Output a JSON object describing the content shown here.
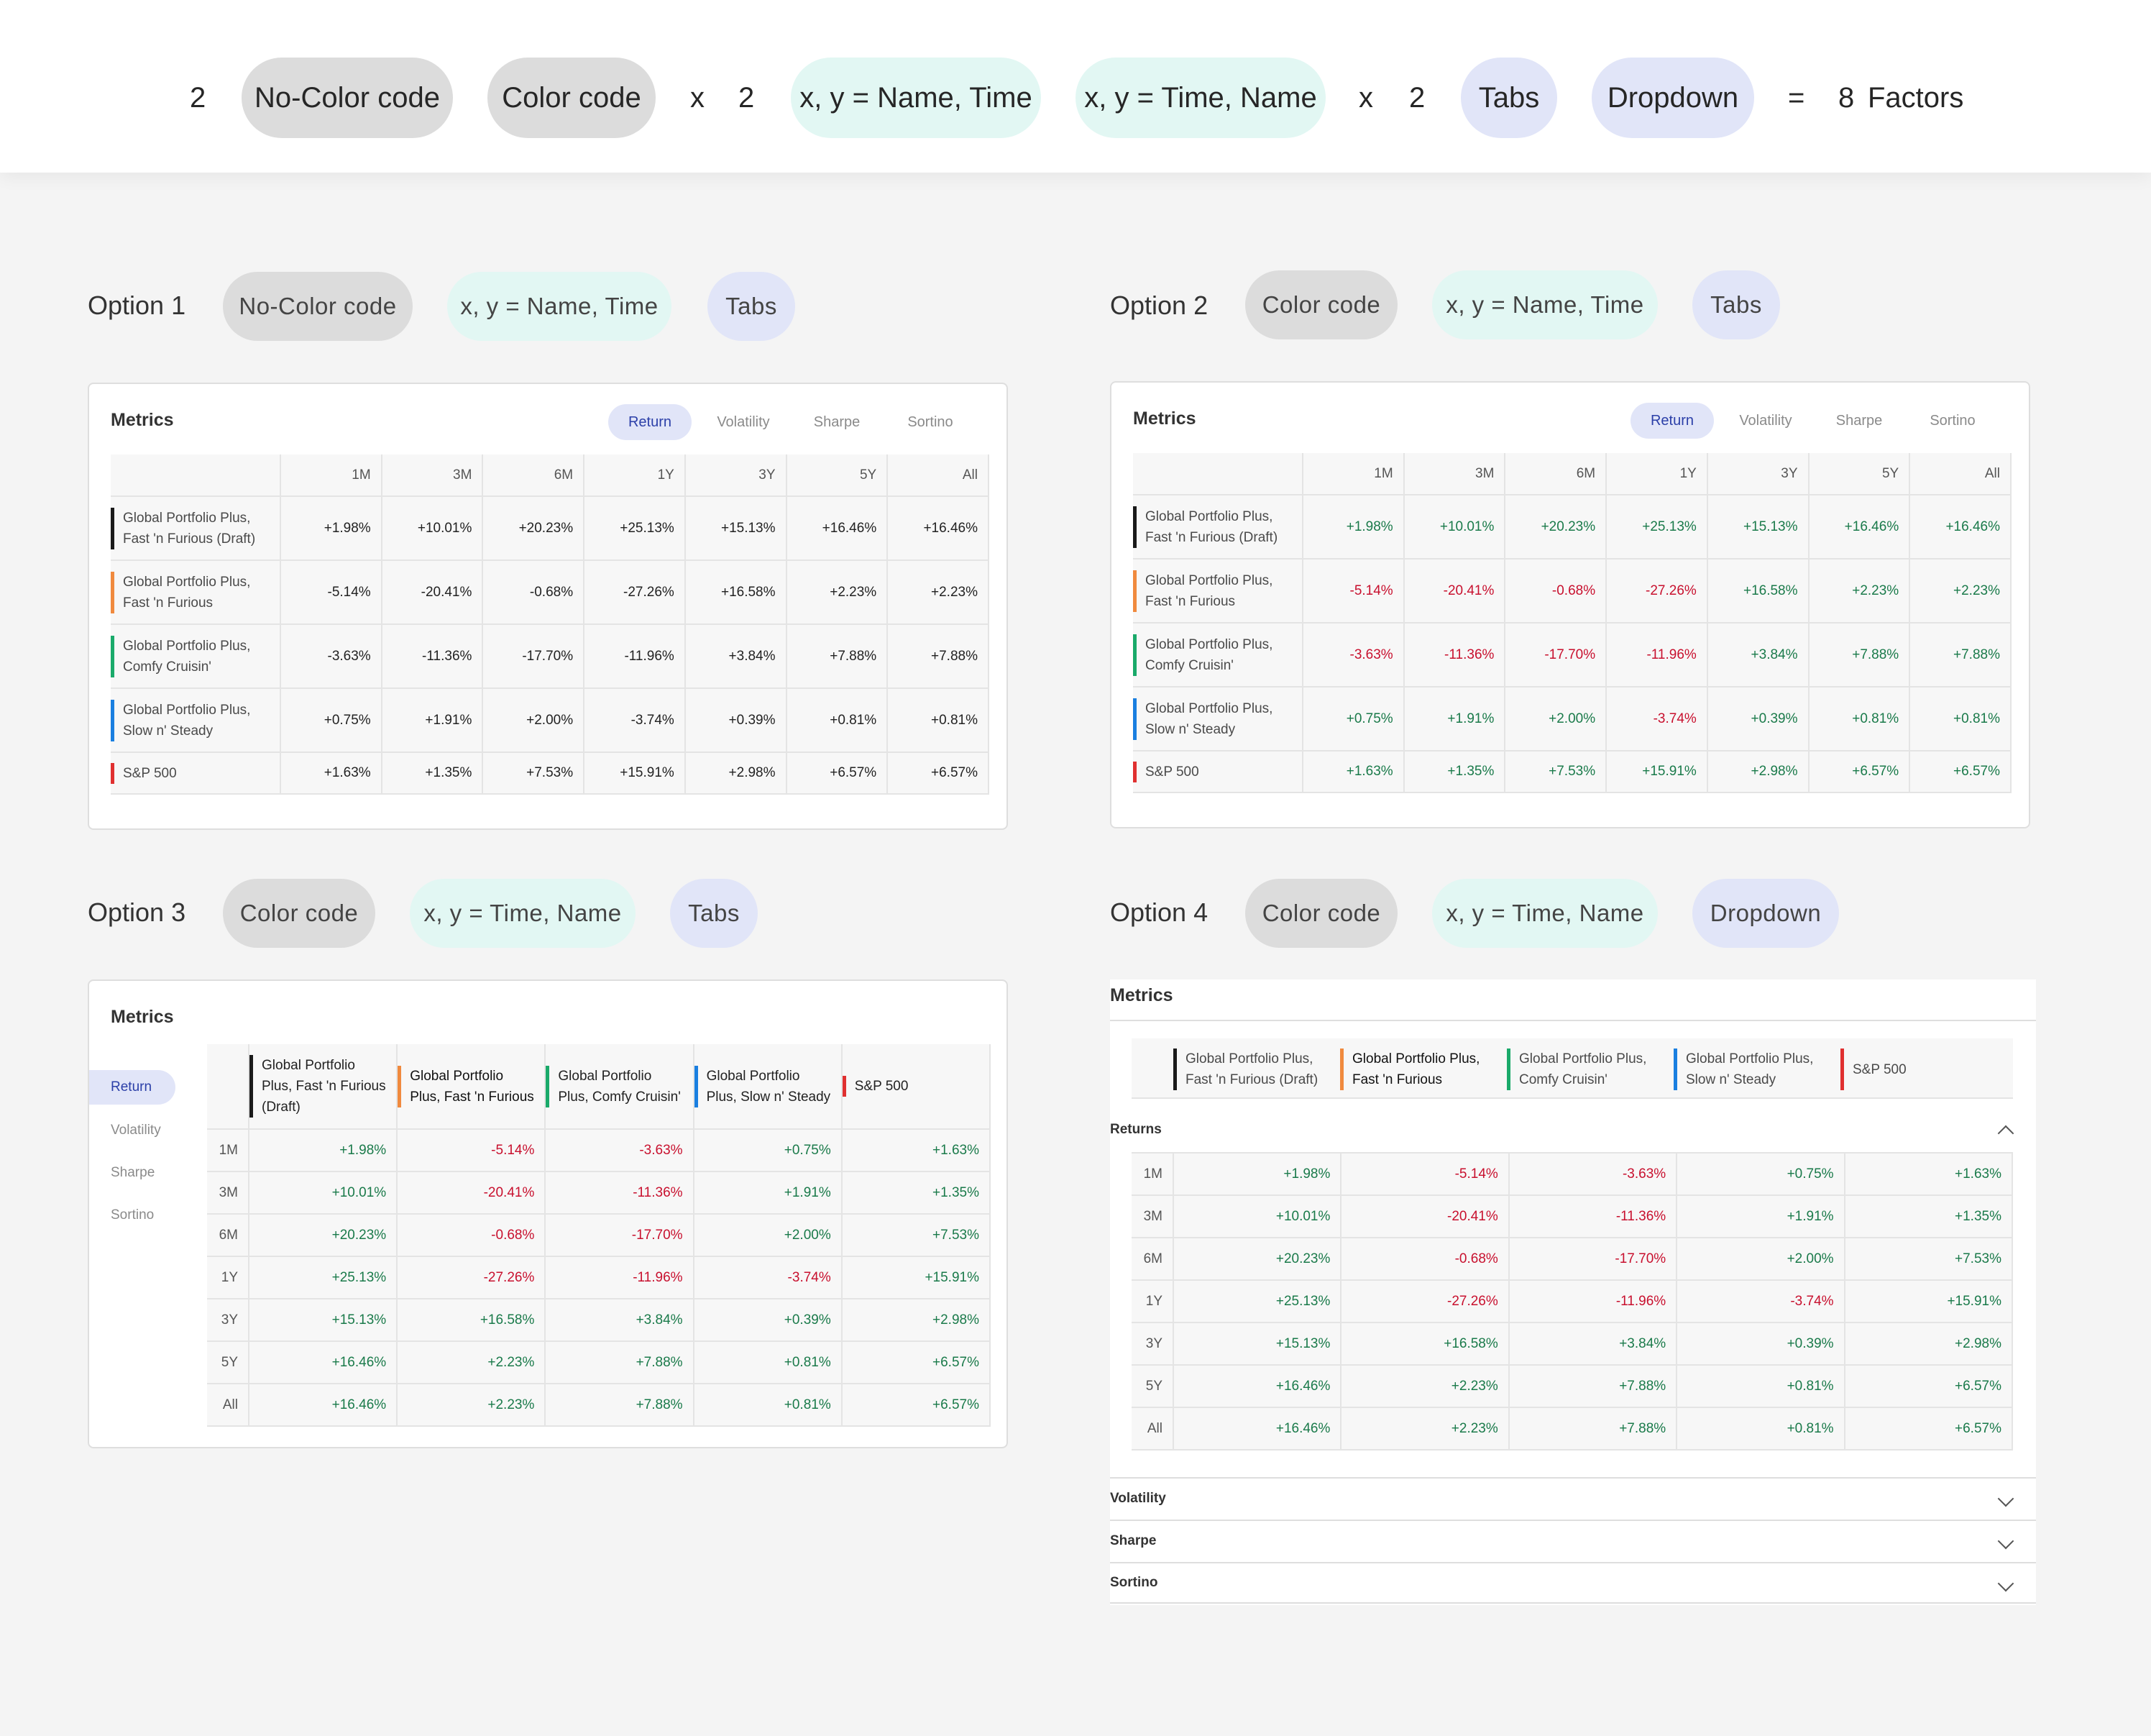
{
  "top": {
    "n1": "2",
    "p1": "No-Color code",
    "p2": "Color code",
    "x1": "x",
    "n2": "2",
    "p3": "x, y = Name, Time",
    "p4": "x, y = Time, Name",
    "x2": "x",
    "n3": "2",
    "p5": "Tabs",
    "p6": "Dropdown",
    "eq": "=",
    "n4": "8",
    "factors": "Factors"
  },
  "options": [
    {
      "title": "Option 1",
      "pills": [
        "No-Color code",
        "x, y = Name, Time",
        "Tabs"
      ]
    },
    {
      "title": "Option 2",
      "pills": [
        "Color code",
        "x, y = Name, Time",
        "Tabs"
      ]
    },
    {
      "title": "Option 3",
      "pills": [
        "Color code",
        "x, y = Time, Name",
        "Tabs"
      ]
    },
    {
      "title": "Option 4",
      "pills": [
        "Color code",
        "x, y = Time, Name",
        "Dropdown"
      ]
    }
  ],
  "card": {
    "title": "Metrics",
    "tabs": [
      "Return",
      "Volatility",
      "Sharpe",
      "Sortino"
    ]
  },
  "periods": [
    "1M",
    "3M",
    "6M",
    "1Y",
    "3Y",
    "5Y",
    "All"
  ],
  "portfolios": [
    {
      "name1": "Global Portfolio Plus,",
      "name2": "Fast 'n Furious (Draft)",
      "color": "#1a1a1a",
      "values": [
        "+1.98%",
        "+10.01%",
        "+20.23%",
        "+25.13%",
        "+15.13%",
        "+16.46%",
        "+16.46%"
      ]
    },
    {
      "name1": "Global Portfolio Plus,",
      "name2": "Fast 'n Furious",
      "color": "#f08a3e",
      "values": [
        "-5.14%",
        "-20.41%",
        "-0.68%",
        "-27.26%",
        "+16.58%",
        "+2.23%",
        "+2.23%"
      ]
    },
    {
      "name1": "Global Portfolio Plus,",
      "name2": "Comfy Cruisin'",
      "color": "#1aaa6a",
      "values": [
        "-3.63%",
        "-11.36%",
        "-17.70%",
        "-11.96%",
        "+3.84%",
        "+7.88%",
        "+7.88%"
      ]
    },
    {
      "name1": "Global Portfolio Plus,",
      "name2": "Slow n' Steady",
      "color": "#1a7fe0",
      "values": [
        "+0.75%",
        "+1.91%",
        "+2.00%",
        "-3.74%",
        "+0.39%",
        "+0.81%",
        "+0.81%"
      ]
    },
    {
      "name1": "S&P 500",
      "name2": "",
      "color": "#e03030",
      "values": [
        "+1.63%",
        "+1.35%",
        "+7.53%",
        "+15.91%",
        "+2.98%",
        "+6.57%",
        "+6.57%"
      ]
    }
  ],
  "opt3": {
    "headers": [
      [
        "Global Portfolio",
        "Plus, Fast 'n Furious",
        "(Draft)"
      ],
      [
        "Global Portfolio",
        "Plus, Fast 'n Furious",
        ""
      ],
      [
        "Global Portfolio",
        "Plus, Comfy Cruisin'",
        ""
      ],
      [
        "Global Portfolio",
        "Plus, Slow n' Steady",
        ""
      ],
      [
        "S&P 500",
        "",
        ""
      ]
    ]
  },
  "opt4": {
    "headers": [
      [
        "Global Portfolio Plus,",
        "Fast 'n Furious (Draft)"
      ],
      [
        "Global Portfolio Plus,",
        "Fast 'n Furious"
      ],
      [
        "Global Portfolio Plus,",
        "Comfy Cruisin'"
      ],
      [
        "Global Portfolio Plus,",
        "Slow n' Steady"
      ],
      [
        "S&P 500",
        ""
      ]
    ],
    "sections": [
      "Returns",
      "Volatility",
      "Sharpe",
      "Sortino"
    ]
  }
}
